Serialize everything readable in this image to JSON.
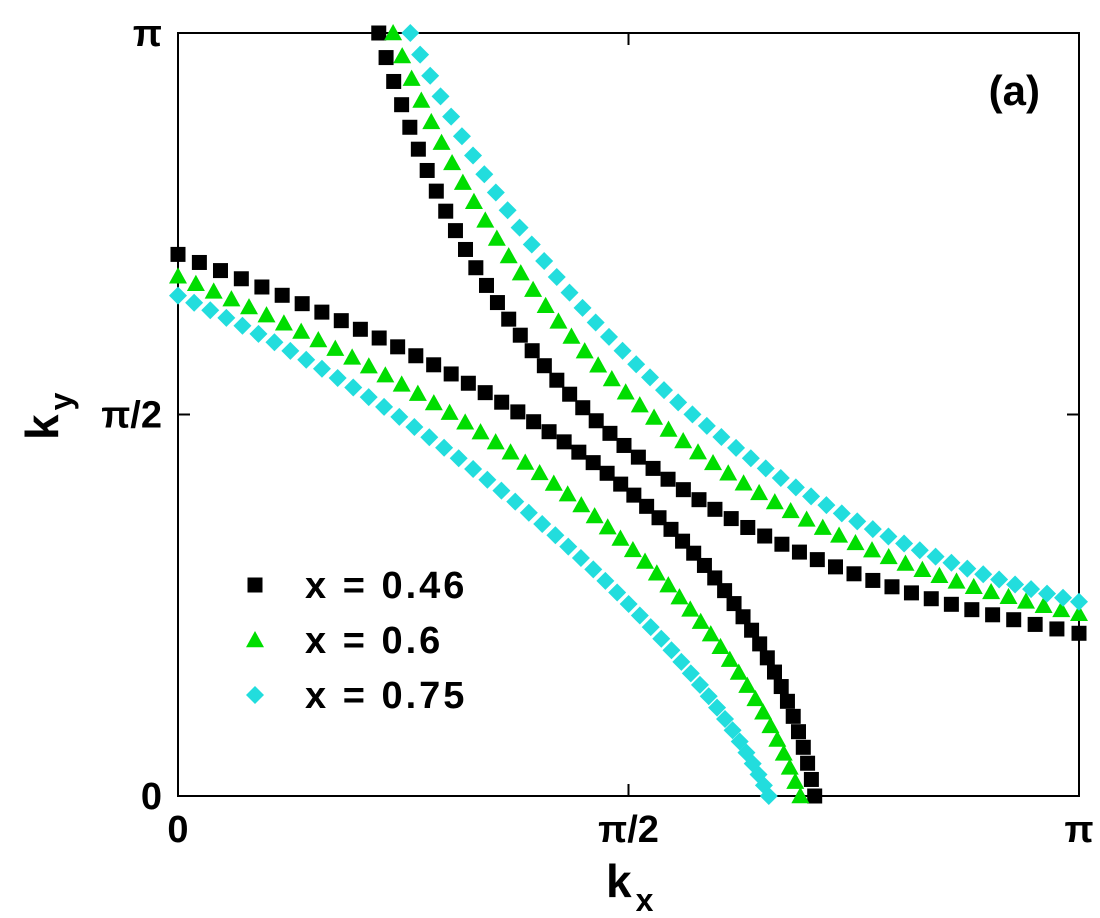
{
  "chart_data": {
    "type": "scatter",
    "title": "",
    "panel_label": "(a)",
    "xlabel": {
      "main": "k",
      "sub": "x"
    },
    "ylabel": {
      "main": "k",
      "sub": "y"
    },
    "xlim": [
      0,
      3.14159
    ],
    "ylim": [
      0,
      3.14159
    ],
    "x_ticks": [
      {
        "value": 0,
        "label": "0"
      },
      {
        "value": 1.5708,
        "label": "π/2"
      },
      {
        "value": 3.14159,
        "label": "π"
      }
    ],
    "y_ticks": [
      {
        "value": 0,
        "label": "0"
      },
      {
        "value": 1.5708,
        "label": "π/2"
      },
      {
        "value": 3.14159,
        "label": "π"
      }
    ],
    "grid": false,
    "legend_position": "bottom-left",
    "series": [
      {
        "name": "x = 0.46",
        "marker": "square",
        "color": "#000000",
        "branches": [
          {
            "x": [
              0.0,
              3.14159
            ],
            "y": [
              2.23,
              0.0
            ]
          },
          {
            "x": [
              0.7,
              3.14159
            ],
            "y": [
              3.14159,
              0.0
            ]
          }
        ]
      },
      {
        "name": "x = 0.6",
        "marker": "triangle",
        "color": "#00dd00",
        "branches": [
          {
            "x": [
              0.0,
              3.14159
            ],
            "y": [
              2.14,
              0.0
            ]
          },
          {
            "x": [
              0.75,
              3.14159
            ],
            "y": [
              3.14159,
              0.0
            ]
          }
        ]
      },
      {
        "name": "x = 0.75",
        "marker": "diamond",
        "color": "#22dddd",
        "branches": [
          {
            "x": [
              0.0,
              3.14159
            ],
            "y": [
              2.06,
              0.0
            ]
          },
          {
            "x": [
              0.81,
              3.14159
            ],
            "y": [
              3.14159,
              0.0
            ]
          }
        ]
      }
    ]
  }
}
